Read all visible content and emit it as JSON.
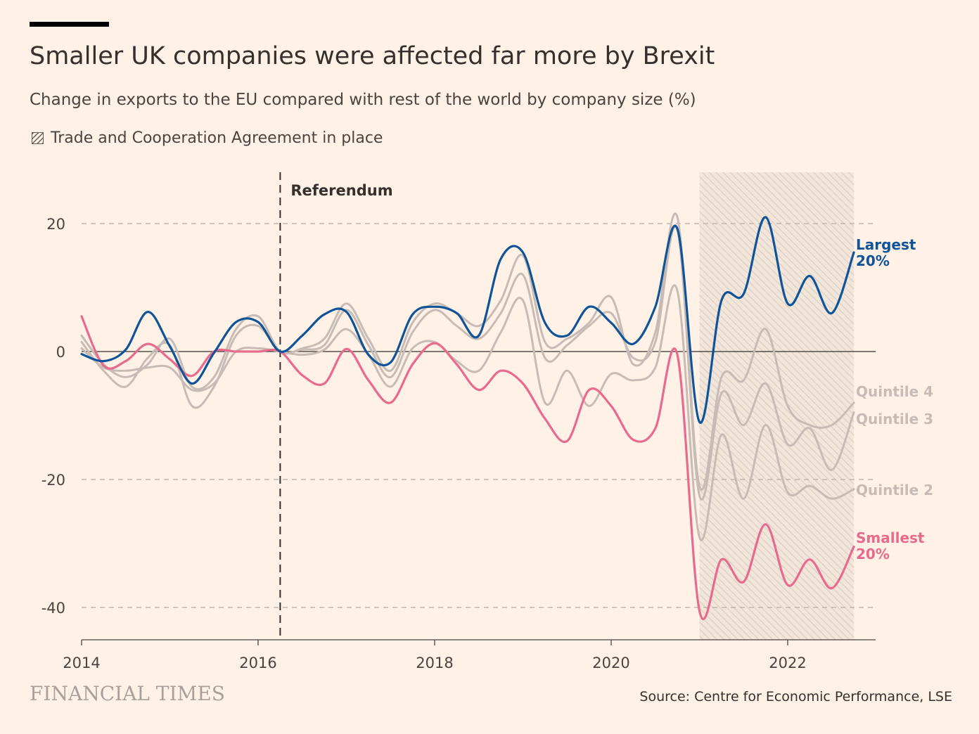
{
  "header": {
    "title": "Smaller UK companies were affected far more by Brexit",
    "subtitle": "Change in exports to the EU compared with rest of the world by company size (%)",
    "legend_label": "Trade and Cooperation Agreement in place"
  },
  "footer": {
    "logo": "FINANCIAL TIMES",
    "source": "Source: Centre for Economic Performance, LSE"
  },
  "colors": {
    "background": "#FFF1E5",
    "largest": "#0F5499",
    "smallest": "#E86A8C",
    "quintiles": "#C7BCB5",
    "shade": "#E8DCD2"
  },
  "chart_data": {
    "type": "line",
    "title": "Smaller UK companies were affected far more by Brexit",
    "xlim": [
      2014,
      2023.1
    ],
    "ylim": [
      -45,
      25
    ],
    "yticks": [
      20,
      0,
      -20,
      -40
    ],
    "xticks": [
      2014,
      2016,
      2018,
      2020,
      2022
    ],
    "shaded_region": {
      "label": "Trade and Cooperation Agreement in place",
      "x": [
        2021.0,
        2022.75
      ]
    },
    "annotations": [
      {
        "label": "Referendum",
        "x": 2016.25
      }
    ],
    "x": [
      2014.0,
      2014.25,
      2014.5,
      2014.75,
      2015.0,
      2015.25,
      2015.5,
      2015.75,
      2016.0,
      2016.25,
      2016.5,
      2016.75,
      2017.0,
      2017.25,
      2017.5,
      2017.75,
      2018.0,
      2018.25,
      2018.5,
      2018.75,
      2019.0,
      2019.25,
      2019.5,
      2019.75,
      2020.0,
      2020.25,
      2020.5,
      2020.75,
      2021.0,
      2021.25,
      2021.5,
      2021.75,
      2022.0,
      2022.25,
      2022.5,
      2022.75
    ],
    "series": [
      {
        "name": "Largest 20%",
        "values": [
          -0.4,
          -1.5,
          0.3,
          6.2,
          0.8,
          -5.0,
          -0.2,
          4.6,
          4.6,
          0.0,
          2.5,
          5.8,
          6.2,
          -0.5,
          -1.7,
          5.8,
          7.0,
          6.0,
          2.5,
          14.5,
          15.5,
          4.5,
          2.5,
          7.0,
          4.5,
          1.2,
          7.0,
          19.2,
          -11.0,
          8.0,
          9.0,
          21.0,
          7.5,
          11.8,
          6.0,
          15.5
        ]
      },
      {
        "name": "Quintile 4",
        "values": [
          2.5,
          -2.0,
          -4.0,
          -2.0,
          2.0,
          -5.5,
          -4.0,
          3.5,
          5.5,
          0.0,
          0.5,
          2.0,
          7.5,
          2.0,
          -3.0,
          4.5,
          7.5,
          6.0,
          4.0,
          8.0,
          15.0,
          1.5,
          2.0,
          4.5,
          8.5,
          -2.0,
          3.0,
          21.0,
          -21.0,
          -4.0,
          -4.5,
          3.5,
          -8.5,
          -11.5,
          -11.5,
          -8.0
        ]
      },
      {
        "name": "Quintile 3",
        "values": [
          1.5,
          -3.0,
          -5.5,
          -1.0,
          1.0,
          -8.5,
          -5.5,
          2.5,
          4.0,
          0.0,
          0.3,
          1.0,
          6.5,
          1.0,
          -4.0,
          3.0,
          6.5,
          4.0,
          2.0,
          6.0,
          12.0,
          -1.0,
          1.0,
          4.0,
          6.0,
          -1.0,
          1.5,
          19.0,
          -22.5,
          -6.5,
          -11.5,
          -5.0,
          -14.5,
          -12.0,
          -18.5,
          -9.5
        ]
      },
      {
        "name": "Quintile 2",
        "values": [
          0.5,
          -2.5,
          -3.0,
          -2.5,
          -2.5,
          -6.0,
          -5.0,
          0.0,
          0.5,
          0.0,
          -0.5,
          0.3,
          3.5,
          -0.5,
          -5.5,
          0.5,
          1.5,
          -1.5,
          -3.0,
          3.0,
          8.0,
          -8.0,
          -3.0,
          -8.5,
          -3.5,
          -4.5,
          -2.5,
          9.5,
          -29.0,
          -13.0,
          -23.0,
          -11.5,
          -22.0,
          -21.0,
          -23.0,
          -21.5
        ]
      },
      {
        "name": "Smallest 20%",
        "values": [
          5.5,
          -2.2,
          -1.5,
          1.2,
          -1.2,
          -3.8,
          0.0,
          0.0,
          0.0,
          0.0,
          -3.7,
          -5.0,
          0.4,
          -4.5,
          -8.0,
          -2.0,
          1.3,
          -2.0,
          -6.0,
          -3.0,
          -5.0,
          -10.5,
          -14.0,
          -6.0,
          -8.5,
          -13.8,
          -12.0,
          -0.5,
          -40.5,
          -32.5,
          -36.0,
          -27.0,
          -36.5,
          -32.5,
          -37.0,
          -30.5
        ]
      }
    ],
    "series_labels": [
      {
        "line1": "Largest",
        "line2": "20%"
      },
      {
        "line1": "Quintile 4",
        "line2": ""
      },
      {
        "line1": "Quintile 3",
        "line2": ""
      },
      {
        "line1": "Quintile 2",
        "line2": ""
      },
      {
        "line1": "Smallest",
        "line2": "20%"
      }
    ]
  }
}
